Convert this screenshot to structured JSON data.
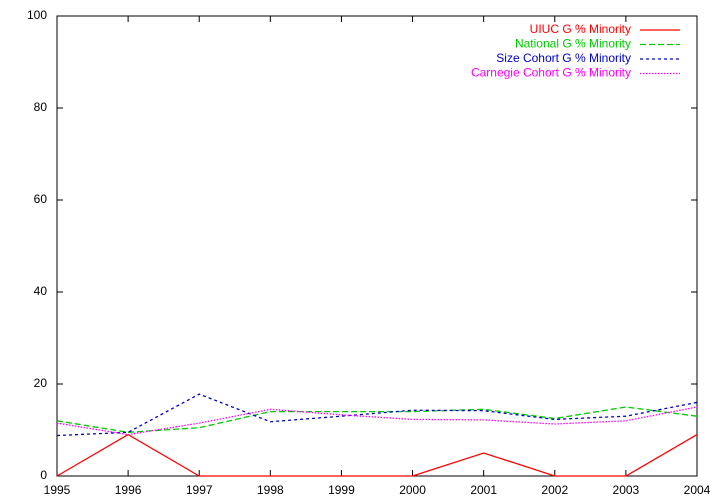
{
  "chart_data": {
    "type": "line",
    "x": [
      1995,
      1996,
      1997,
      1998,
      1999,
      2000,
      2001,
      2002,
      2003,
      2004
    ],
    "series": [
      {
        "name": "UIUC G % Minority",
        "color": "#ff0000",
        "dash": "solid",
        "values": [
          0,
          9,
          0,
          0,
          0,
          0,
          5,
          0,
          0,
          9
        ]
      },
      {
        "name": "National G % Minority",
        "color": "#00cc00",
        "dash": "dashed",
        "values": [
          12,
          9.5,
          10.5,
          14,
          14,
          14,
          14.5,
          12.5,
          15,
          13
        ]
      },
      {
        "name": "Size Cohort G % Minority",
        "color": "#0000cc",
        "dash": "dotted",
        "values": [
          8.8,
          9.5,
          17.8,
          11.8,
          13,
          14.3,
          14.2,
          12.3,
          13,
          16
        ]
      },
      {
        "name": "Carnegie Cohort G % Minority",
        "color": "#ff00ff",
        "dash": "fine",
        "values": [
          11.5,
          9,
          11.5,
          14.5,
          13.3,
          12.3,
          12.2,
          11.3,
          12,
          15
        ]
      }
    ],
    "xlim": [
      1995,
      2004
    ],
    "xticks": [
      1995,
      1996,
      1997,
      1998,
      1999,
      2000,
      2001,
      2002,
      2003,
      2004
    ],
    "ylim": [
      0,
      100
    ],
    "yticks": [
      0,
      20,
      40,
      60,
      80,
      100
    ],
    "grid": false,
    "legend": "top-right"
  }
}
